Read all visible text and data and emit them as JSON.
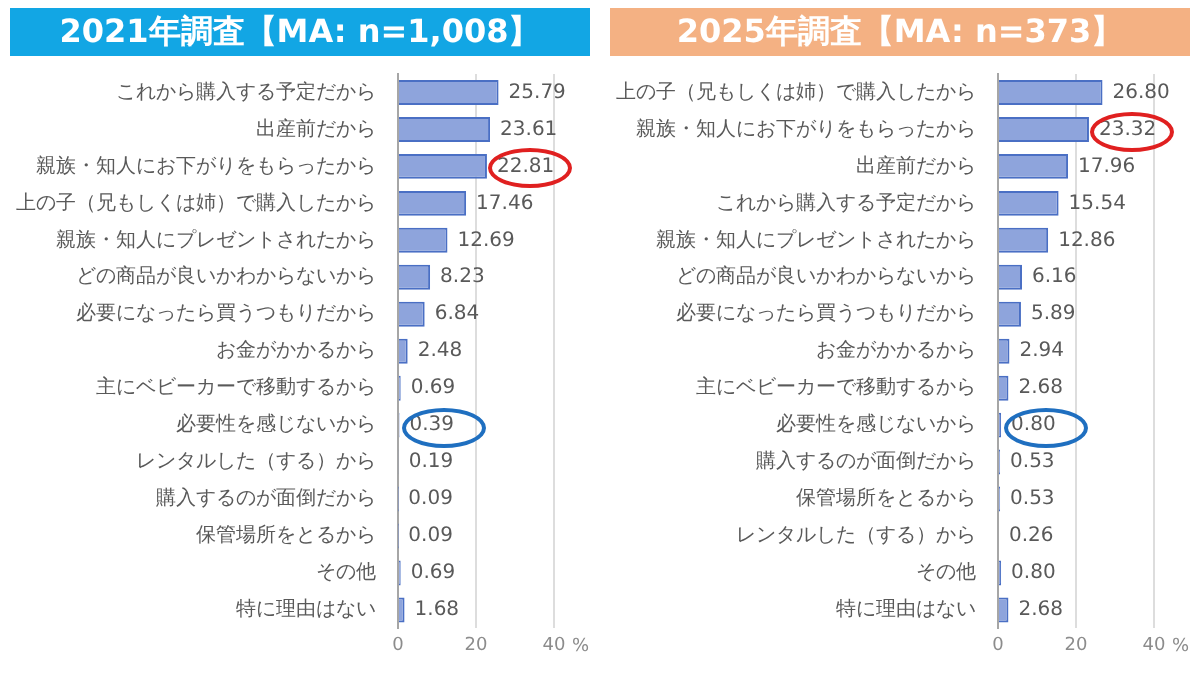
{
  "chart_data": [
    {
      "type": "bar",
      "orientation": "horizontal",
      "title": "2021年調査【MA: n=1,008】",
      "categories": [
        "これから購入する予定だから",
        "出産前だから",
        "親族・知人にお下がりをもらったから",
        "上の子（兄もしくは姉）で購入したから",
        "親族・知人にプレゼントされたから",
        "どの商品が良いかわからないから",
        "必要になったら買うつもりだから",
        "お金がかかるから",
        "主にベビーカーで移動するから",
        "必要性を感じないから",
        "レンタルした（する）から",
        "購入するのが面倒だから",
        "保管場所をとるから",
        "その他",
        "特に理由はない"
      ],
      "values": [
        25.79,
        23.61,
        22.81,
        17.46,
        12.69,
        8.23,
        6.84,
        2.48,
        0.69,
        0.39,
        0.19,
        0.09,
        0.09,
        0.69,
        1.68
      ],
      "value_labels": [
        "25.79",
        "23.61",
        "22.81",
        "17.46",
        "12.69",
        "8.23",
        "6.84",
        "2.48",
        "0.69",
        "0.39",
        "0.19",
        "0.09",
        "0.09",
        "0.69",
        "1.68"
      ],
      "color": "#8ea4dc",
      "xlim": [
        0,
        40
      ],
      "xticks": [
        0,
        20,
        40
      ],
      "xlabel": "%",
      "grid": "x"
    },
    {
      "type": "bar",
      "orientation": "horizontal",
      "title": "2025年調査【MA: n=373】",
      "categories": [
        "上の子（兄もしくは姉）で購入したから",
        "親族・知人にお下がりをもらったから",
        "出産前だから",
        "これから購入する予定だから",
        "親族・知人にプレゼントされたから",
        "どの商品が良いかわからないから",
        "必要になったら買うつもりだから",
        "お金がかかるから",
        "主にベビーカーで移動するから",
        "必要性を感じないから",
        "購入するのが面倒だから",
        "保管場所をとるから",
        "レンタルした（する）から",
        "その他",
        "特に理由はない"
      ],
      "values": [
        26.8,
        23.32,
        17.96,
        15.54,
        12.86,
        6.16,
        5.89,
        2.94,
        2.68,
        0.8,
        0.53,
        0.53,
        0.26,
        0.8,
        2.68
      ],
      "value_labels": [
        "26.80",
        "23.32",
        "17.96",
        "15.54",
        "12.86",
        "6.16",
        "5.89",
        "2.94",
        "2.68",
        "0.80",
        "0.53",
        "0.53",
        "0.26",
        "0.80",
        "2.68"
      ],
      "color": "#8ea4dc",
      "xlim": [
        0,
        40
      ],
      "xticks": [
        0,
        20,
        40
      ],
      "xlabel": "%",
      "grid": "x"
    }
  ]
}
